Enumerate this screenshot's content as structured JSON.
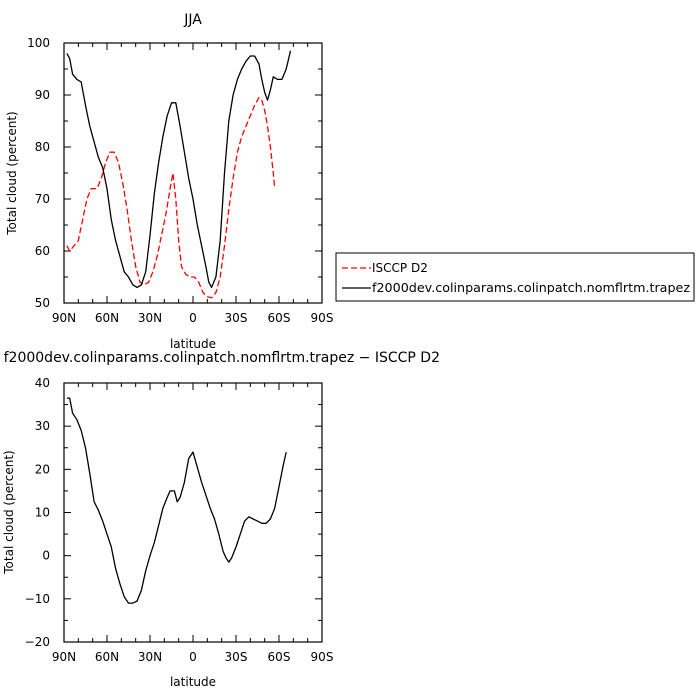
{
  "chart_data": [
    {
      "type": "line",
      "title": "JJA",
      "xlabel": "latitude",
      "ylabel": "Total cloud (percent)",
      "xlim": [
        -90,
        90
      ],
      "ylim": [
        50,
        100
      ],
      "x_tick_values": [
        -90,
        -60,
        -30,
        0,
        30,
        60,
        90
      ],
      "x_tick_labels": [
        "90N",
        "60N",
        "30N",
        "0",
        "30S",
        "60S",
        "90S"
      ],
      "y_tick_values": [
        50,
        60,
        70,
        80,
        90,
        100
      ],
      "legend_position": "right",
      "series": [
        {
          "name": "ISCCP D2",
          "color": "#ff0000",
          "dash": "dashed",
          "points": [
            [
              -88,
              61
            ],
            [
              -86,
              60
            ],
            [
              -83,
              61
            ],
            [
              -80,
              62
            ],
            [
              -77,
              66
            ],
            [
              -74,
              70
            ],
            [
              -71,
              72
            ],
            [
              -67,
              72
            ],
            [
              -64,
              74
            ],
            [
              -61,
              77
            ],
            [
              -58,
              79
            ],
            [
              -55,
              79
            ],
            [
              -52,
              77
            ],
            [
              -49,
              73
            ],
            [
              -46,
              68
            ],
            [
              -43,
              62
            ],
            [
              -40,
              57
            ],
            [
              -37,
              54
            ],
            [
              -34,
              53.5
            ],
            [
              -31,
              54
            ],
            [
              -28,
              56
            ],
            [
              -25,
              59
            ],
            [
              -22,
              63
            ],
            [
              -19,
              67
            ],
            [
              -16,
              72
            ],
            [
              -14,
              75
            ],
            [
              -12,
              70
            ],
            [
              -10,
              62
            ],
            [
              -8,
              57
            ],
            [
              -5,
              55.5
            ],
            [
              -2,
              55
            ],
            [
              1,
              55
            ],
            [
              4,
              54
            ],
            [
              7,
              52
            ],
            [
              10,
              51.2
            ],
            [
              13,
              51
            ],
            [
              16,
              52
            ],
            [
              19,
              55
            ],
            [
              22,
              61
            ],
            [
              25,
              68
            ],
            [
              28,
              74
            ],
            [
              31,
              79
            ],
            [
              34,
              82
            ],
            [
              37,
              84
            ],
            [
              40,
              86
            ],
            [
              43,
              88
            ],
            [
              46,
              89.5
            ],
            [
              48,
              89
            ],
            [
              50,
              87
            ],
            [
              52,
              84
            ],
            [
              54,
              80
            ],
            [
              56,
              75
            ],
            [
              57,
              72
            ]
          ]
        },
        {
          "name": "f2000dev.colinparams.colinpatch.nomflrtm.trapez",
          "color": "#000000",
          "dash": "solid",
          "points": [
            [
              -88,
              98
            ],
            [
              -86,
              97
            ],
            [
              -84,
              94
            ],
            [
              -81,
              93
            ],
            [
              -78,
              92.5
            ],
            [
              -75,
              88
            ],
            [
              -72,
              84
            ],
            [
              -69,
              81
            ],
            [
              -66,
              78
            ],
            [
              -63,
              76
            ],
            [
              -60,
              72
            ],
            [
              -57,
              66
            ],
            [
              -54,
              62
            ],
            [
              -51,
              59
            ],
            [
              -48,
              56
            ],
            [
              -45,
              55
            ],
            [
              -42,
              53.5
            ],
            [
              -39,
              53
            ],
            [
              -36,
              53.5
            ],
            [
              -33,
              56
            ],
            [
              -30,
              63
            ],
            [
              -27,
              71
            ],
            [
              -24,
              77
            ],
            [
              -21,
              82
            ],
            [
              -18,
              86
            ],
            [
              -15,
              88.5
            ],
            [
              -12,
              88.5
            ],
            [
              -9,
              84
            ],
            [
              -6,
              79
            ],
            [
              -3,
              74
            ],
            [
              0,
              70
            ],
            [
              3,
              65
            ],
            [
              6,
              61
            ],
            [
              9,
              57
            ],
            [
              11,
              54
            ],
            [
              13,
              53
            ],
            [
              16,
              55
            ],
            [
              19,
              62
            ],
            [
              22,
              75
            ],
            [
              25,
              85
            ],
            [
              28,
              90
            ],
            [
              31,
              93
            ],
            [
              34,
              95
            ],
            [
              37,
              96.5
            ],
            [
              40,
              97.5
            ],
            [
              43,
              97.5
            ],
            [
              46,
              96
            ],
            [
              48,
              93
            ],
            [
              50,
              90.5
            ],
            [
              52,
              89
            ],
            [
              54,
              91
            ],
            [
              56,
              93.5
            ],
            [
              59,
              93
            ],
            [
              62,
              93
            ],
            [
              65,
              95
            ],
            [
              68,
              98.5
            ]
          ]
        }
      ]
    },
    {
      "type": "line",
      "title": "f2000dev.colinparams.colinpatch.nomflrtm.trapez − ISCCP D2",
      "xlabel": "latitude",
      "ylabel": "Total cloud (percent)",
      "xlim": [
        -90,
        90
      ],
      "ylim": [
        -20,
        40
      ],
      "x_tick_values": [
        -90,
        -60,
        -30,
        0,
        30,
        60,
        90
      ],
      "x_tick_labels": [
        "90N",
        "60N",
        "30N",
        "0",
        "30S",
        "60S",
        "90S"
      ],
      "y_tick_values": [
        -20,
        -10,
        0,
        10,
        20,
        30,
        40
      ],
      "series": [
        {
          "name": "",
          "color": "#000000",
          "dash": "solid",
          "points": [
            [
              -88,
              36.5
            ],
            [
              -86,
              36.5
            ],
            [
              -84,
              33
            ],
            [
              -81,
              31.5
            ],
            [
              -78,
              29
            ],
            [
              -75,
              25
            ],
            [
              -72,
              19
            ],
            [
              -69,
              12.5
            ],
            [
              -66,
              10.5
            ],
            [
              -63,
              8
            ],
            [
              -60,
              5
            ],
            [
              -57,
              2
            ],
            [
              -54,
              -3
            ],
            [
              -51,
              -6.5
            ],
            [
              -48,
              -9.5
            ],
            [
              -45,
              -11
            ],
            [
              -42,
              -11
            ],
            [
              -39,
              -10.5
            ],
            [
              -36,
              -8
            ],
            [
              -33,
              -3.5
            ],
            [
              -30,
              0
            ],
            [
              -27,
              3
            ],
            [
              -24,
              7
            ],
            [
              -21,
              11
            ],
            [
              -18,
              13.5
            ],
            [
              -16,
              15
            ],
            [
              -13,
              15
            ],
            [
              -11,
              12.5
            ],
            [
              -9,
              13.5
            ],
            [
              -6,
              17
            ],
            [
              -3,
              22.5
            ],
            [
              0,
              24
            ],
            [
              3,
              20.5
            ],
            [
              6,
              17
            ],
            [
              9,
              14
            ],
            [
              12,
              11
            ],
            [
              15,
              8.5
            ],
            [
              18,
              5
            ],
            [
              21,
              1
            ],
            [
              23,
              -0.5
            ],
            [
              25,
              -1.5
            ],
            [
              27,
              -0.5
            ],
            [
              30,
              2
            ],
            [
              33,
              5
            ],
            [
              36,
              8
            ],
            [
              39,
              9
            ],
            [
              42,
              8.5
            ],
            [
              45,
              8
            ],
            [
              48,
              7.5
            ],
            [
              51,
              7.5
            ],
            [
              54,
              8.5
            ],
            [
              57,
              11
            ],
            [
              60,
              16
            ],
            [
              63,
              21
            ],
            [
              65,
              24
            ]
          ]
        }
      ]
    }
  ]
}
